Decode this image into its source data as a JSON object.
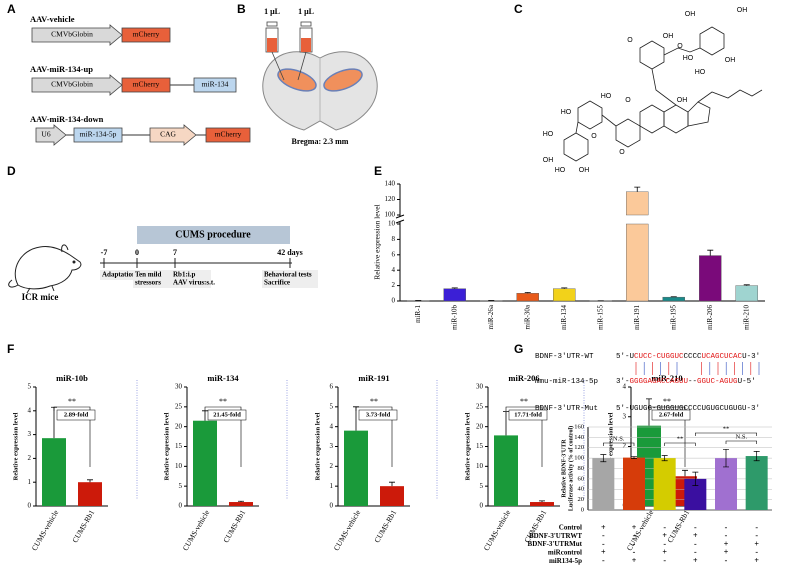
{
  "panel_labels": [
    "A",
    "B",
    "C",
    "D",
    "E",
    "F",
    "G"
  ],
  "panel_a": {
    "constructs": [
      {
        "name": "AAV-vehicle",
        "elements": [
          "CMVbGlobin",
          "mCherry"
        ]
      },
      {
        "name": "AAV-miR-134-up",
        "elements": [
          "CMVbGlobin",
          "mCherry",
          "miR-134"
        ]
      },
      {
        "name": "AAV-miR-134-down",
        "elements": [
          "U6",
          "miR-134-5p",
          "CAG",
          "mCherry"
        ]
      }
    ]
  },
  "panel_b": {
    "volumes": [
      "1 μL",
      "1 μL"
    ],
    "caption": "Bregma: 2.3 mm"
  },
  "panel_c": {
    "atom_labels": [
      "OH",
      "OH",
      "HO",
      "O",
      "OH",
      "HO",
      "O",
      "OH",
      "HO",
      "O",
      "HO",
      "O",
      "HO",
      "OH",
      "HO",
      "O",
      "OH",
      "OH"
    ]
  },
  "panel_d": {
    "animal": "ICR mice",
    "procedure": "CUMS procedure",
    "timepoints": [
      "-7",
      "0",
      "7",
      "42 days"
    ],
    "events": [
      [
        "Adaptation"
      ],
      [
        "Ten mild",
        "stressors"
      ],
      [
        "Rb1:i.p",
        "AAV virus:s.t."
      ],
      [
        "Behavioral tests",
        "Sacrifice"
      ]
    ]
  },
  "chart_data": [
    {
      "type": "broken-bar",
      "ylabel": "Relative expression level",
      "categories": [
        "miR-1",
        "miR-10b",
        "miR-26a",
        "miR-30a",
        "miR-134",
        "miR-155",
        "miR-191",
        "miR-195",
        "miR-206",
        "miR-210"
      ],
      "values": [
        0.05,
        1.6,
        0.05,
        1.0,
        1.6,
        0.02,
        130,
        0.5,
        5.9,
        2.0
      ],
      "errors": [
        0.01,
        0.1,
        0.01,
        0.1,
        0.1,
        0.01,
        6,
        0.05,
        0.7,
        0.1
      ],
      "colors": [
        "#7f7f7f",
        "#3b1fd6",
        "#7f7f7f",
        "#e85a1a",
        "#f2d21a",
        "#7f7f7f",
        "#fbc99a",
        "#1a8a8a",
        "#7a0a7a",
        "#9fd4d0"
      ],
      "ylim": [
        0,
        140
      ],
      "ybreak": [
        10,
        100
      ],
      "yticks": [
        0,
        2,
        4,
        6,
        8,
        10,
        100,
        120,
        140
      ]
    },
    {
      "type": "bar",
      "title": "miR-10b",
      "ylabel": "Relative expression level",
      "categories": [
        "CUMS-vehicle",
        "CUMS-Rb1"
      ],
      "values": [
        2.85,
        1.0
      ],
      "errors": [
        1.3,
        0.1
      ],
      "colors": [
        "#1a9a3a",
        "#cc1a0a"
      ],
      "ylim": [
        0,
        5
      ],
      "yticks": [
        0,
        1,
        2,
        3,
        4,
        5
      ],
      "significance": "**",
      "fold": "2.89-fold"
    },
    {
      "type": "bar",
      "title": "miR-134",
      "ylabel": "Relative expression level",
      "categories": [
        "CUMS-vehicle",
        "CUMS-Rb1"
      ],
      "values": [
        21.5,
        1.0
      ],
      "errors": [
        2.5,
        0.2
      ],
      "colors": [
        "#1a9a3a",
        "#cc1a0a"
      ],
      "ylim": [
        0,
        30
      ],
      "yticks": [
        0,
        5,
        10,
        15,
        20,
        25,
        30
      ],
      "significance": "**",
      "fold": "21.45-fold"
    },
    {
      "type": "bar",
      "title": "miR-191",
      "ylabel": "Relative expression level",
      "categories": [
        "CUMS-vehicle",
        "CUMS-Rb1"
      ],
      "values": [
        3.8,
        1.0
      ],
      "errors": [
        1.2,
        0.2
      ],
      "colors": [
        "#1a9a3a",
        "#cc1a0a"
      ],
      "ylim": [
        0,
        6
      ],
      "yticks": [
        0,
        1,
        2,
        3,
        4,
        5,
        6
      ],
      "significance": "**",
      "fold": "3.73-fold"
    },
    {
      "type": "bar",
      "title": "miR-206",
      "ylabel": "Relative expression level",
      "categories": [
        "CUMS-vehicle",
        "CUMS-Rb1"
      ],
      "values": [
        17.8,
        1.0
      ],
      "errors": [
        6,
        0.3
      ],
      "colors": [
        "#1a9a3a",
        "#cc1a0a"
      ],
      "ylim": [
        0,
        30
      ],
      "yticks": [
        0,
        5,
        10,
        15,
        20,
        25,
        30
      ],
      "significance": "**",
      "fold": "17.71-fold"
    },
    {
      "type": "bar",
      "title": "miR-210",
      "ylabel": "Relative expression level",
      "categories": [
        "CUMS-vehicle",
        "CUMS-Rb1"
      ],
      "values": [
        2.7,
        1.0
      ],
      "errors": [
        0.9,
        0.2
      ],
      "colors": [
        "#1a9a3a",
        "#cc1a0a"
      ],
      "ylim": [
        0,
        4
      ],
      "yticks": [
        0,
        1,
        2,
        3,
        4
      ],
      "significance": "**",
      "fold": "2.67-fold"
    },
    {
      "type": "bar",
      "ylabel": [
        "Relative BDNF-3'UTR",
        "Luciferase activity (% of control)"
      ],
      "values": [
        100,
        101,
        100,
        60,
        100,
        104
      ],
      "errors": [
        7,
        2,
        5,
        13,
        17,
        9
      ],
      "colors": [
        "#a6a6a6",
        "#d63c0a",
        "#d4cc00",
        "#3a0fa0",
        "#a070d0",
        "#2e9a6a"
      ],
      "ylim": [
        0,
        160
      ],
      "yticks": [
        0,
        20,
        40,
        60,
        80,
        100,
        120,
        140,
        160
      ],
      "significance": [
        "N.S.",
        "**",
        "**",
        "N.S."
      ],
      "sequences": [
        {
          "label": "BDNF-3'UTR-WT",
          "parts": [
            "5'-U",
            "CUCC-CUGGUC",
            "CCCC",
            "UCAGCUCAC",
            "U-3'"
          ]
        },
        {
          "label": "mmu-miR-134-5p",
          "parts": [
            "3'-",
            "GGGGAGACCAGUU",
            "--",
            "GGUC-AGUG",
            "U-5'"
          ]
        },
        {
          "label": "BDNF-3'UTR-Mut",
          "parts": [
            "5'-UGUGG-GUGGUGCCCCUGUGCUGUGU-3'"
          ]
        }
      ],
      "conditions": [
        {
          "label": "Control",
          "signs": [
            "+",
            "+",
            "-",
            "-",
            "-",
            "-"
          ]
        },
        {
          "label": "BDNF-3'UTRWT",
          "signs": [
            "-",
            "-",
            "+",
            "+",
            "-",
            "-"
          ]
        },
        {
          "label": "BDNF-3'UTRMut",
          "signs": [
            "-",
            "-",
            "-",
            "-",
            "+",
            "+"
          ]
        },
        {
          "label": "miRcontrol",
          "signs": [
            "+",
            "-",
            "+",
            "-",
            "+",
            "-"
          ]
        },
        {
          "label": "miR134-5p",
          "signs": [
            "-",
            "+",
            "-",
            "+",
            "-",
            "+"
          ]
        }
      ]
    }
  ]
}
